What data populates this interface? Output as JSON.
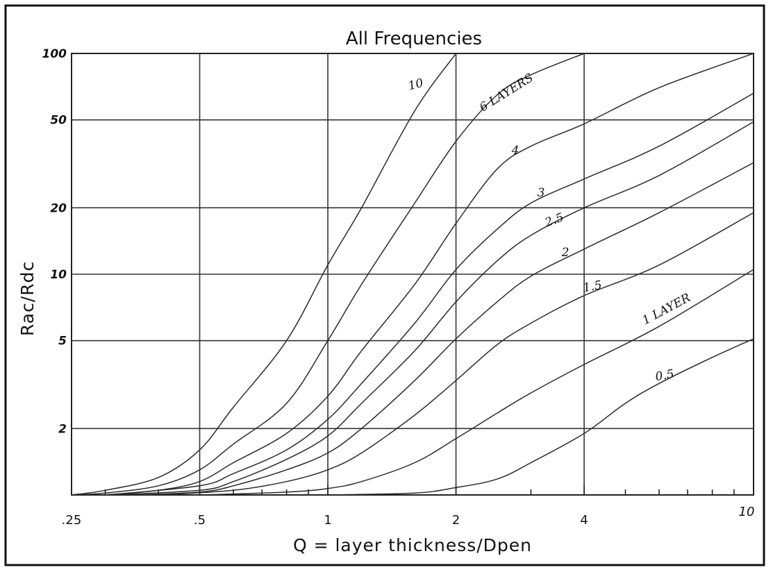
{
  "chart_data": {
    "type": "line",
    "title": "All Frequencies",
    "xlabel": "Q = layer thickness/Dpen",
    "ylabel": "Rac/Rdc",
    "xscale": "log",
    "yscale": "log",
    "xlim": [
      0.25,
      10
    ],
    "ylim": [
      1,
      100
    ],
    "grid": true,
    "x_ticks": [
      {
        "value": 0.25,
        "label": ".25"
      },
      {
        "value": 0.5,
        "label": ".5"
      },
      {
        "value": 1,
        "label": "1"
      },
      {
        "value": 2,
        "label": "2"
      },
      {
        "value": 4,
        "label": "4"
      },
      {
        "value": 10,
        "label": "10"
      }
    ],
    "y_ticks": [
      {
        "value": 2,
        "label": "2"
      },
      {
        "value": 5,
        "label": "5"
      },
      {
        "value": 10,
        "label": "10"
      },
      {
        "value": 20,
        "label": "20"
      },
      {
        "value": 50,
        "label": "50"
      },
      {
        "value": 100,
        "label": "100"
      }
    ],
    "series": [
      {
        "name": "10",
        "points": [
          [
            0.25,
            1.0
          ],
          [
            0.3,
            1.05
          ],
          [
            0.4,
            1.2
          ],
          [
            0.5,
            1.6
          ],
          [
            0.6,
            2.5
          ],
          [
            0.8,
            5
          ],
          [
            1.0,
            11
          ],
          [
            1.2,
            20
          ],
          [
            1.6,
            55
          ],
          [
            2.0,
            100
          ]
        ]
      },
      {
        "name": "6 LAYERS",
        "points": [
          [
            0.25,
            1.0
          ],
          [
            0.3,
            1.02
          ],
          [
            0.4,
            1.1
          ],
          [
            0.5,
            1.3
          ],
          [
            0.6,
            1.7
          ],
          [
            0.8,
            2.6
          ],
          [
            1.0,
            5
          ],
          [
            1.2,
            9
          ],
          [
            1.6,
            21
          ],
          [
            2.0,
            40
          ],
          [
            2.5,
            65
          ],
          [
            3.0,
            80
          ],
          [
            4.0,
            100
          ]
        ]
      },
      {
        "name": "4",
        "points": [
          [
            0.3,
            1.0
          ],
          [
            0.4,
            1.05
          ],
          [
            0.5,
            1.15
          ],
          [
            0.6,
            1.4
          ],
          [
            0.8,
            1.9
          ],
          [
            1.0,
            2.8
          ],
          [
            1.2,
            4.5
          ],
          [
            1.6,
            9
          ],
          [
            2.0,
            17
          ],
          [
            2.5,
            30
          ],
          [
            3.0,
            38
          ],
          [
            4.0,
            48
          ],
          [
            6.0,
            70
          ],
          [
            10,
            100
          ]
        ]
      },
      {
        "name": "3",
        "points": [
          [
            0.3,
            1.0
          ],
          [
            0.5,
            1.1
          ],
          [
            0.6,
            1.25
          ],
          [
            0.8,
            1.6
          ],
          [
            1.0,
            2.2
          ],
          [
            1.2,
            3.2
          ],
          [
            1.6,
            6
          ],
          [
            2.0,
            10.5
          ],
          [
            2.5,
            16
          ],
          [
            3.0,
            21
          ],
          [
            4.0,
            27
          ],
          [
            6.0,
            38
          ],
          [
            10,
            66
          ]
        ]
      },
      {
        "name": "2.5",
        "points": [
          [
            0.3,
            1.0
          ],
          [
            0.5,
            1.05
          ],
          [
            0.6,
            1.15
          ],
          [
            0.8,
            1.45
          ],
          [
            1.0,
            1.85
          ],
          [
            1.2,
            2.6
          ],
          [
            1.6,
            4.5
          ],
          [
            2.0,
            7.5
          ],
          [
            2.5,
            11.5
          ],
          [
            3.0,
            15
          ],
          [
            4.0,
            20
          ],
          [
            6.0,
            28
          ],
          [
            10,
            49
          ]
        ]
      },
      {
        "name": "2",
        "points": [
          [
            0.35,
            1.0
          ],
          [
            0.5,
            1.03
          ],
          [
            0.6,
            1.1
          ],
          [
            0.8,
            1.3
          ],
          [
            1.0,
            1.55
          ],
          [
            1.2,
            2.0
          ],
          [
            1.6,
            3.3
          ],
          [
            2.0,
            5.1
          ],
          [
            2.5,
            7.5
          ],
          [
            3.0,
            9.8
          ],
          [
            4.0,
            13
          ],
          [
            6.0,
            19
          ],
          [
            10,
            32
          ]
        ]
      },
      {
        "name": "1.5",
        "points": [
          [
            0.4,
            1.0
          ],
          [
            0.6,
            1.05
          ],
          [
            0.8,
            1.15
          ],
          [
            1.0,
            1.3
          ],
          [
            1.2,
            1.55
          ],
          [
            1.6,
            2.3
          ],
          [
            2.0,
            3.3
          ],
          [
            2.5,
            4.8
          ],
          [
            3.0,
            6
          ],
          [
            4.0,
            8
          ],
          [
            6.0,
            11
          ],
          [
            10,
            19
          ]
        ]
      },
      {
        "name": "1 LAYER",
        "points": [
          [
            0.5,
            1.0
          ],
          [
            0.8,
            1.03
          ],
          [
            1.0,
            1.07
          ],
          [
            1.2,
            1.15
          ],
          [
            1.6,
            1.4
          ],
          [
            2.0,
            1.8
          ],
          [
            2.5,
            2.35
          ],
          [
            3.0,
            2.9
          ],
          [
            4.0,
            3.9
          ],
          [
            6.0,
            5.8
          ],
          [
            10,
            10.5
          ]
        ]
      },
      {
        "name": "0.5",
        "points": [
          [
            1.0,
            1.0
          ],
          [
            1.6,
            1.02
          ],
          [
            2.0,
            1.08
          ],
          [
            2.5,
            1.18
          ],
          [
            3.0,
            1.4
          ],
          [
            4.0,
            1.9
          ],
          [
            5.0,
            2.6
          ],
          [
            6.0,
            3.2
          ],
          [
            8.0,
            4.2
          ],
          [
            10,
            5.1
          ]
        ]
      }
    ]
  }
}
